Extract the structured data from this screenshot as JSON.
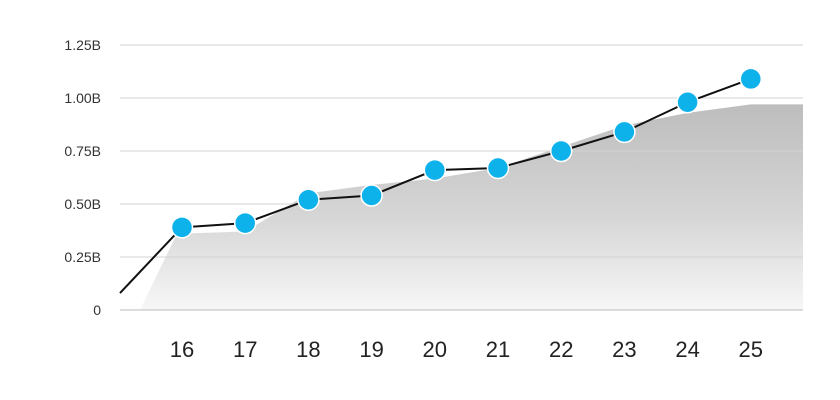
{
  "chart_data": {
    "type": "line",
    "categories": [
      "16",
      "17",
      "18",
      "19",
      "20",
      "21",
      "22",
      "23",
      "24",
      "25"
    ],
    "series": [
      {
        "values": [
          0.39,
          0.41,
          0.52,
          0.54,
          0.66,
          0.67,
          0.75,
          0.84,
          0.98,
          1.09
        ],
        "color": "#0eb2ea",
        "line_color": "#111111",
        "line_start_value": 0.08
      }
    ],
    "area": {
      "values": [
        0.36,
        0.37,
        0.55,
        0.59,
        0.62,
        0.67,
        0.77,
        0.87,
        0.93,
        0.97
      ],
      "end_value": 0.97,
      "color": "#c4c4c4"
    },
    "yticks": [
      {
        "value": 0,
        "label": "0"
      },
      {
        "value": 0.25,
        "label": "0.25B"
      },
      {
        "value": 0.5,
        "label": "0.50B"
      },
      {
        "value": 0.75,
        "label": "0.75B"
      },
      {
        "value": 1.0,
        "label": "1.00B"
      },
      {
        "value": 1.25,
        "label": "1.25B"
      }
    ],
    "ylim": [
      0,
      1.25
    ],
    "grid": true,
    "title": "",
    "xlabel": "",
    "ylabel": ""
  }
}
